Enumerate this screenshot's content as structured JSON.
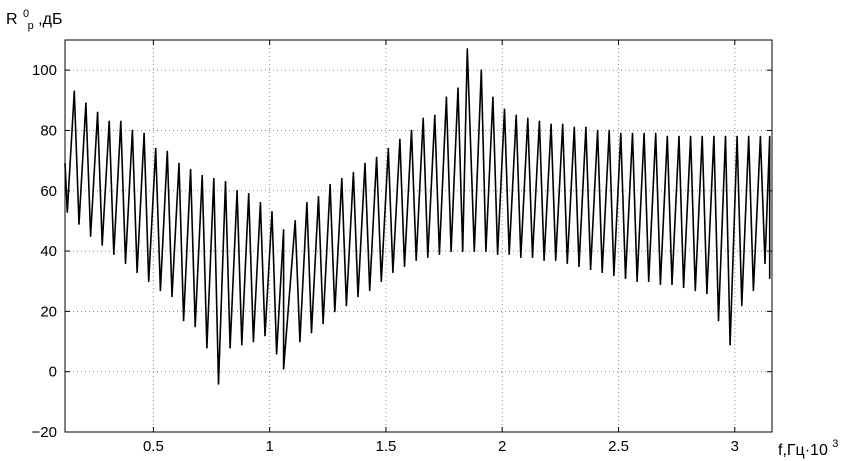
{
  "chart_data": {
    "type": "line",
    "title": "",
    "ylabel": {
      "base": "R",
      "sup": "0",
      "sub": "p",
      "rest": ",дБ"
    },
    "xlabel": {
      "text": "f,Гц·10",
      "sup": "3"
    },
    "xlim": [
      0.12,
      3.16
    ],
    "ylim": [
      -20,
      110
    ],
    "x_ticks": [
      0.5,
      1,
      1.5,
      2,
      2.5,
      3
    ],
    "x_tick_labels": [
      "0.5",
      "1",
      "1.5",
      "2",
      "2.5",
      "3"
    ],
    "y_ticks": [
      -20,
      0,
      20,
      40,
      60,
      80,
      100
    ],
    "y_tick_labels": [
      "−20",
      "0",
      "20",
      "40",
      "60",
      "80",
      "100"
    ],
    "grid": true,
    "legend": "none",
    "line_color": "#000000",
    "series": [
      {
        "style": "oscillating resonance curve",
        "peaks": [
          [
            0.12,
            69
          ],
          [
            0.16,
            93
          ],
          [
            0.21,
            89
          ],
          [
            0.26,
            86
          ],
          [
            0.31,
            83
          ],
          [
            0.36,
            83
          ],
          [
            0.41,
            80
          ],
          [
            0.46,
            79
          ],
          [
            0.51,
            74
          ],
          [
            0.56,
            73
          ],
          [
            0.61,
            69
          ],
          [
            0.66,
            67
          ],
          [
            0.71,
            65
          ],
          [
            0.76,
            64
          ],
          [
            0.81,
            63
          ],
          [
            0.86,
            60
          ],
          [
            0.91,
            59
          ],
          [
            0.96,
            56
          ],
          [
            1.01,
            53
          ],
          [
            1.06,
            47
          ],
          [
            1.11,
            50
          ],
          [
            1.16,
            56
          ],
          [
            1.21,
            58
          ],
          [
            1.26,
            62
          ],
          [
            1.31,
            64
          ],
          [
            1.36,
            66
          ],
          [
            1.41,
            69
          ],
          [
            1.46,
            71
          ],
          [
            1.51,
            74
          ],
          [
            1.56,
            77
          ],
          [
            1.61,
            80
          ],
          [
            1.66,
            84
          ],
          [
            1.71,
            85
          ],
          [
            1.76,
            91
          ],
          [
            1.81,
            94
          ],
          [
            1.85,
            107
          ],
          [
            1.91,
            100
          ],
          [
            1.96,
            91
          ],
          [
            2.01,
            87
          ],
          [
            2.06,
            85
          ],
          [
            2.11,
            84
          ],
          [
            2.16,
            83
          ],
          [
            2.21,
            82
          ],
          [
            2.26,
            82
          ],
          [
            2.31,
            81
          ],
          [
            2.36,
            81
          ],
          [
            2.41,
            80
          ],
          [
            2.46,
            80
          ],
          [
            2.51,
            79
          ],
          [
            2.56,
            79
          ],
          [
            2.61,
            79
          ],
          [
            2.66,
            79
          ],
          [
            2.71,
            78
          ],
          [
            2.76,
            78
          ],
          [
            2.81,
            78
          ],
          [
            2.86,
            78
          ],
          [
            2.91,
            78
          ],
          [
            2.96,
            78
          ],
          [
            3.01,
            78
          ],
          [
            3.06,
            78
          ],
          [
            3.11,
            78
          ],
          [
            3.15,
            78
          ]
        ],
        "troughs": [
          [
            0.13,
            53
          ],
          [
            0.18,
            49
          ],
          [
            0.23,
            45
          ],
          [
            0.28,
            42
          ],
          [
            0.33,
            39
          ],
          [
            0.38,
            36
          ],
          [
            0.43,
            33
          ],
          [
            0.48,
            30
          ],
          [
            0.53,
            27
          ],
          [
            0.58,
            25
          ],
          [
            0.63,
            17
          ],
          [
            0.68,
            15
          ],
          [
            0.73,
            8
          ],
          [
            0.78,
            -4
          ],
          [
            0.83,
            8
          ],
          [
            0.88,
            9
          ],
          [
            0.93,
            10
          ],
          [
            0.98,
            12
          ],
          [
            1.03,
            6
          ],
          [
            1.06,
            1
          ],
          [
            1.13,
            10
          ],
          [
            1.18,
            13
          ],
          [
            1.23,
            16
          ],
          [
            1.28,
            20
          ],
          [
            1.33,
            22
          ],
          [
            1.38,
            25
          ],
          [
            1.43,
            27
          ],
          [
            1.48,
            30
          ],
          [
            1.53,
            33
          ],
          [
            1.58,
            35
          ],
          [
            1.63,
            37
          ],
          [
            1.68,
            38
          ],
          [
            1.73,
            39
          ],
          [
            1.78,
            40
          ],
          [
            1.83,
            40
          ],
          [
            1.88,
            40
          ],
          [
            1.93,
            40
          ],
          [
            1.98,
            39
          ],
          [
            2.03,
            39
          ],
          [
            2.08,
            38
          ],
          [
            2.13,
            38
          ],
          [
            2.18,
            37
          ],
          [
            2.23,
            37
          ],
          [
            2.28,
            36
          ],
          [
            2.33,
            35
          ],
          [
            2.38,
            34
          ],
          [
            2.43,
            33
          ],
          [
            2.48,
            32
          ],
          [
            2.53,
            31
          ],
          [
            2.58,
            30
          ],
          [
            2.63,
            30
          ],
          [
            2.68,
            29
          ],
          [
            2.73,
            29
          ],
          [
            2.78,
            28
          ],
          [
            2.83,
            27
          ],
          [
            2.88,
            26
          ],
          [
            2.93,
            17
          ],
          [
            2.98,
            9
          ],
          [
            3.03,
            22
          ],
          [
            3.08,
            27
          ],
          [
            3.13,
            36
          ],
          [
            3.15,
            31
          ]
        ]
      }
    ]
  }
}
